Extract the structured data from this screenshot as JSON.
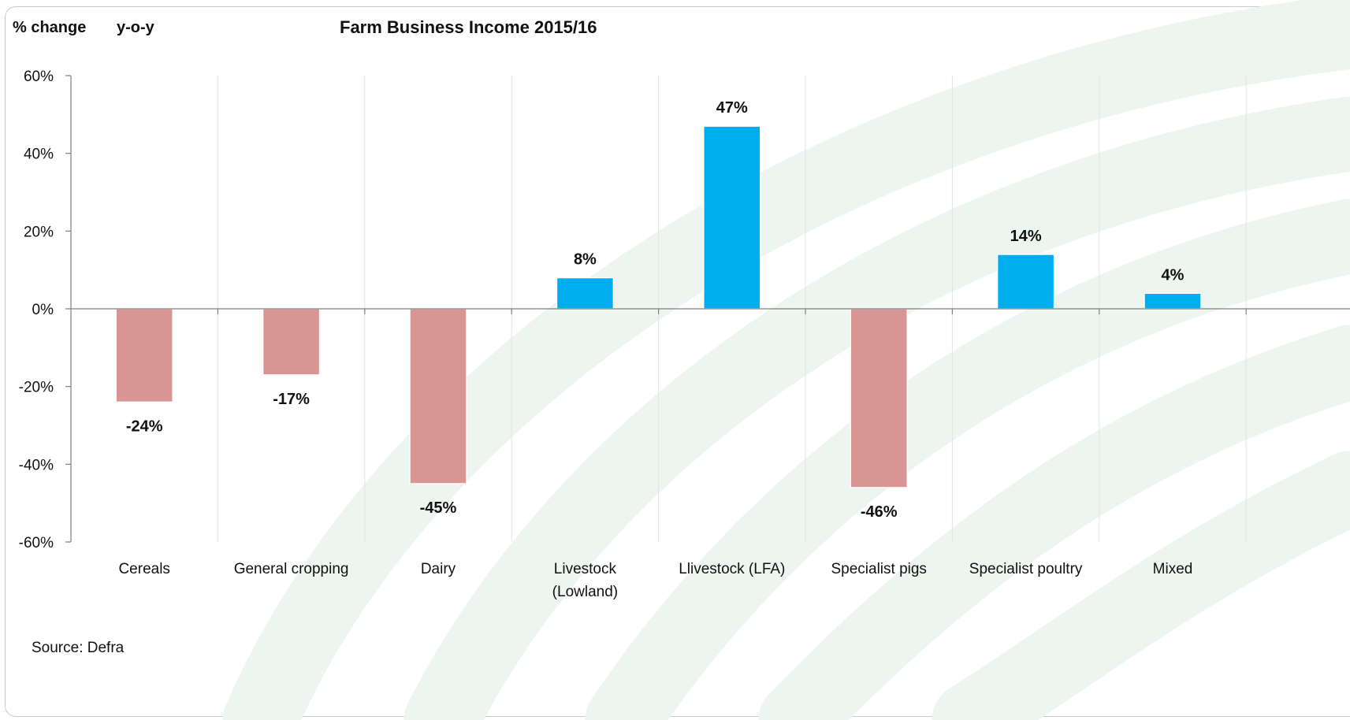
{
  "header": {
    "unit_label": "% change",
    "period_label": "y-o-y",
    "title": "Farm Business Income 2015/16"
  },
  "source": "Source: Defra",
  "colors": {
    "positive": "#00AEEF",
    "negative": "#D99594",
    "axis": "#808080",
    "grid": "#e3e3e3",
    "background_swoosh": "#ecf5ef"
  },
  "chart_data": {
    "type": "bar",
    "title": "Farm Business Income 2015/16",
    "ylabel": "% change",
    "xlabel": "",
    "ylim": [
      -60,
      60
    ],
    "yticks": [
      60,
      40,
      20,
      0,
      -20,
      -40,
      -60
    ],
    "ytick_labels": [
      "60%",
      "40%",
      "20%",
      "0%",
      "-20%",
      "-40%",
      "-60%"
    ],
    "grid": true,
    "categories": [
      [
        "Cereals"
      ],
      [
        "General cropping"
      ],
      [
        "Dairy"
      ],
      [
        "Livestock",
        "(Lowland)"
      ],
      [
        "Llivestock (LFA)"
      ],
      [
        "Specialist pigs"
      ],
      [
        "Specialist poultry"
      ],
      [
        "Mixed"
      ]
    ],
    "values": [
      -24,
      -17,
      -45,
      8,
      47,
      -46,
      14,
      4
    ],
    "value_labels": [
      "-24%",
      "-17%",
      "-45%",
      "8%",
      "47%",
      "-46%",
      "14%",
      "4%"
    ]
  }
}
